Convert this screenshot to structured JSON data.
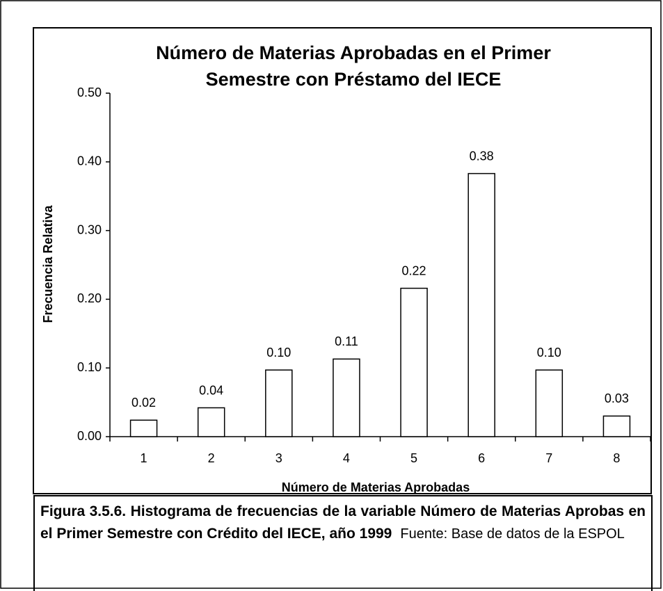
{
  "chart_data": {
    "type": "bar",
    "title": [
      "Número de Materias Aprobadas en el Primer",
      "Semestre con Préstamo del IECE"
    ],
    "x_label": "Número de Materias Aprobadas",
    "y_label": "Frecuencia Relativa",
    "categories": [
      "1",
      "2",
      "3",
      "4",
      "5",
      "6",
      "7",
      "8"
    ],
    "values": [
      0.024,
      0.042,
      0.097,
      0.113,
      0.216,
      0.383,
      0.097,
      0.03
    ],
    "value_labels": [
      "0.02",
      "0.04",
      "0.10",
      "0.11",
      "0.22",
      "0.38",
      "0.10",
      "0.03"
    ],
    "color": "#ffffff",
    "ylim": [
      0,
      0.5
    ],
    "yticks": [
      {
        "value": 0,
        "label": "0.00"
      },
      {
        "value": 0.1,
        "label": "0.10"
      },
      {
        "value": 0.2,
        "label": "0.20"
      },
      {
        "value": 0.3,
        "label": "0.30"
      },
      {
        "value": 0.4,
        "label": "0.40"
      },
      {
        "value": 0.5,
        "label": "0.50"
      }
    ],
    "grid": false
  },
  "caption": {
    "text": "Figura 3.5.6. Histograma de frecuencias de la variable Número de Materias Aprobas en el Primer Semestre con Crédito del IECE, año 1999",
    "source": "Fuente: Base de datos de la ESPOL"
  }
}
